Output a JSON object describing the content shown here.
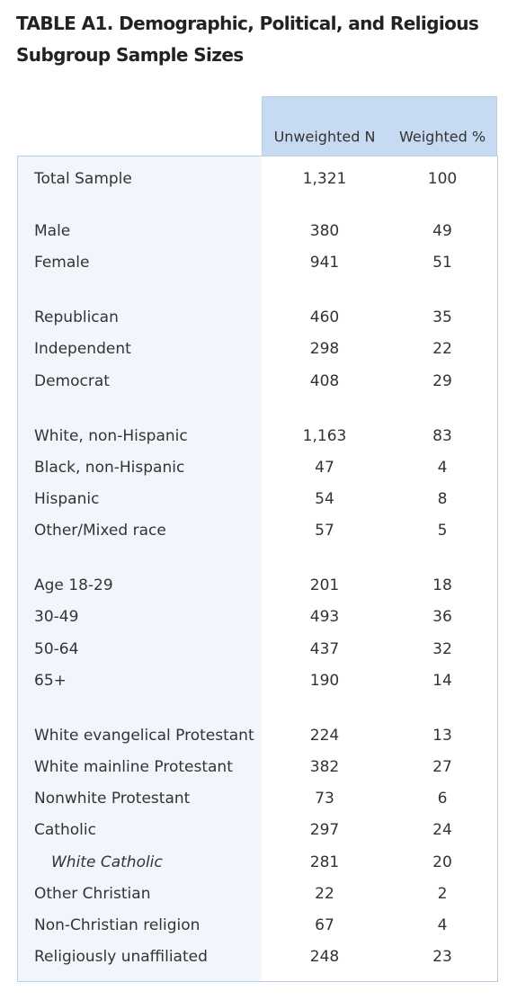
{
  "title_lines": [
    "TABLE A1. Demographic, Political, and Religious",
    "Subgroup Sample Sizes"
  ],
  "table": {
    "columns": [
      "Unweighted N",
      "Weighted %"
    ],
    "groups": [
      {
        "rows": [
          {
            "label": "Total Sample",
            "n": "1,321",
            "pct": "100"
          }
        ]
      },
      {
        "rows": [
          {
            "label": "Male",
            "n": "380",
            "pct": "49"
          },
          {
            "label": "Female",
            "n": "941",
            "pct": "51"
          }
        ]
      },
      {
        "rows": [
          {
            "label": "Republican",
            "n": "460",
            "pct": "35"
          },
          {
            "label": "Independent",
            "n": "298",
            "pct": "22"
          },
          {
            "label": "Democrat",
            "n": "408",
            "pct": "29"
          }
        ]
      },
      {
        "rows": [
          {
            "label": "White, non-Hispanic",
            "n": "1,163",
            "pct": "83"
          },
          {
            "label": "Black, non-Hispanic",
            "n": "47",
            "pct": "4"
          },
          {
            "label": "Hispanic",
            "n": "54",
            "pct": "8"
          },
          {
            "label": "Other/Mixed race",
            "n": "57",
            "pct": "5"
          }
        ]
      },
      {
        "rows": [
          {
            "label": "Age 18-29",
            "n": "201",
            "pct": "18"
          },
          {
            "label": "30-49",
            "n": "493",
            "pct": "36"
          },
          {
            "label": "50-64",
            "n": "437",
            "pct": "32"
          },
          {
            "label": "65+",
            "n": "190",
            "pct": "14"
          }
        ]
      },
      {
        "rows": [
          {
            "label": "White evangelical Protestant",
            "n": "224",
            "pct": "13"
          },
          {
            "label": "White mainline Protestant",
            "n": "382",
            "pct": "27"
          },
          {
            "label": "Nonwhite Protestant",
            "n": "73",
            "pct": "6"
          },
          {
            "label": "Catholic",
            "n": "297",
            "pct": "24"
          },
          {
            "label": "White Catholic",
            "n": "281",
            "pct": "20",
            "italic": true
          },
          {
            "label": "Other Christian",
            "n": "22",
            "pct": "2"
          },
          {
            "label": "Non-Christian religion",
            "n": "67",
            "pct": "4"
          },
          {
            "label": "Religiously unaffiliated",
            "n": "248",
            "pct": "23"
          }
        ]
      }
    ]
  }
}
